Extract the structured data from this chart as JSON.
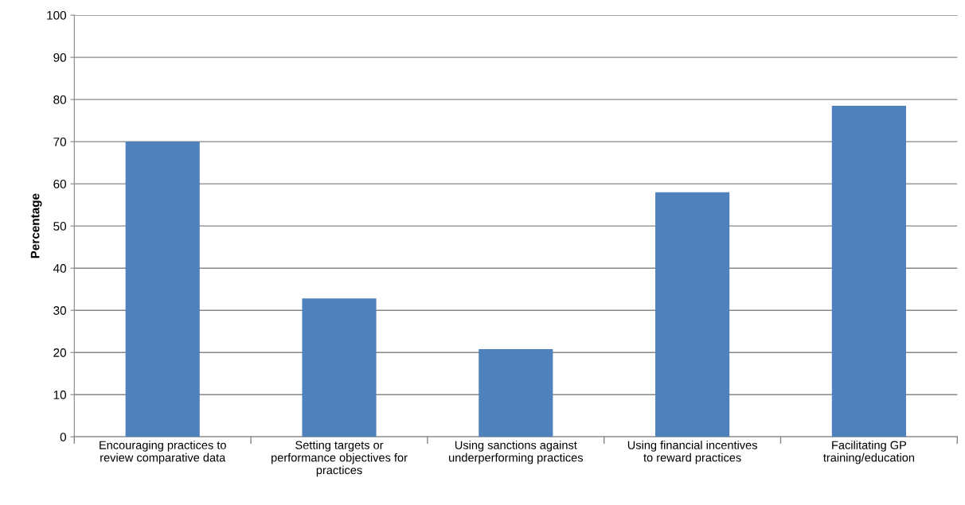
{
  "chart_data": {
    "type": "bar",
    "ylabel": "Percentage",
    "categories": [
      "Encouraging practices to\nreview comparative data",
      "Setting targets or\nperformance objectives for\npractices",
      "Using sanctions against\nunderperforming practices",
      "Using financial incentives\nto reward practices",
      "Facilitating GP\ntraining/education"
    ],
    "values": [
      70,
      32.8,
      20.8,
      58,
      78.5
    ],
    "color": "#4f81bd",
    "ylim": [
      0,
      100
    ],
    "yticks": [
      0,
      10,
      20,
      30,
      40,
      50,
      60,
      70,
      80,
      90,
      100
    ],
    "grid": "y"
  }
}
